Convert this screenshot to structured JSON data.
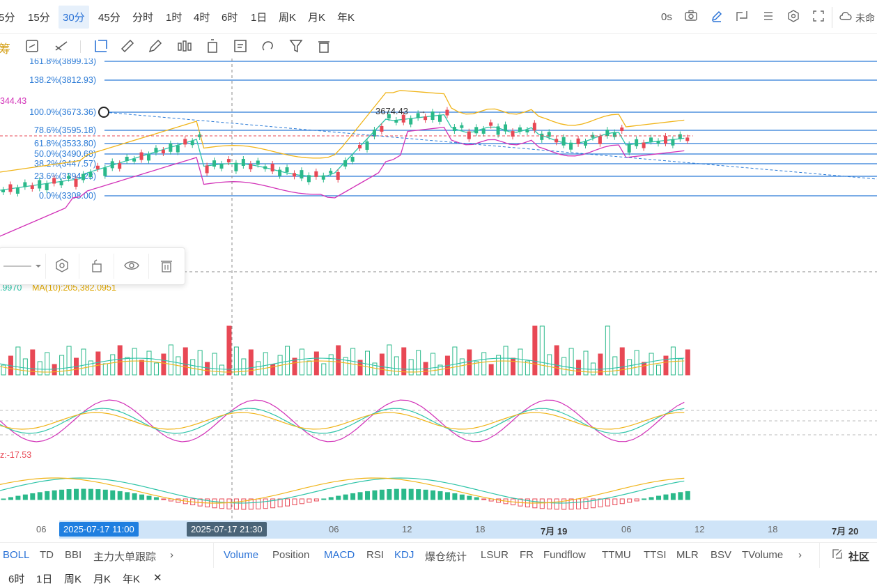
{
  "timeframes": [
    {
      "label": "5分",
      "active": false
    },
    {
      "label": "15分",
      "active": false
    },
    {
      "label": "30分",
      "active": true
    },
    {
      "label": "45分",
      "active": false
    },
    {
      "label": "分时",
      "active": false
    },
    {
      "label": "1时",
      "active": false
    },
    {
      "label": "4时",
      "active": false
    },
    {
      "label": "6时",
      "active": false
    },
    {
      "label": "1日",
      "active": false
    },
    {
      "label": "周K",
      "active": false
    },
    {
      "label": "月K",
      "active": false
    },
    {
      "label": "年K",
      "active": false
    }
  ],
  "top_right": {
    "countdown": "0s",
    "cloud_label": "未命",
    "icons": [
      "camera-icon",
      "pencil-icon",
      "window-icon",
      "list-icon",
      "settings-icon",
      "fullscreen-icon",
      "cloud-icon"
    ]
  },
  "draw_tools": {
    "left_label": "筹",
    "icons": [
      "sync-icon",
      "line-tool-icon",
      "rectangle-tool-icon",
      "ruler-icon",
      "brush-icon",
      "pattern-icon",
      "trash-can-icon",
      "note-icon",
      "magnet-icon",
      "filter-icon",
      "delete-icon"
    ]
  },
  "chart": {
    "price_level_left": "344.43",
    "fib_levels": [
      {
        "label": "161.8%(3899.13)"
      },
      {
        "label": "138.2%(3812.93)"
      },
      {
        "label": "100.0%(3673.36)"
      },
      {
        "label": "78.6%(3595.18)"
      },
      {
        "label": "61.8%(3533.80)"
      },
      {
        "label": "50.0%(3490.68)"
      },
      {
        "label": "38.2%(3447.57)"
      },
      {
        "label": "23.6%(3394.23)"
      },
      {
        "label": "0.0%(3308.00)"
      }
    ],
    "high_marker": "3674.43",
    "colors": {
      "up": "#2bb98a",
      "down": "#e84855",
      "fib": "#2a7ad6",
      "boll_upper": "#f0b418",
      "boll_mid": "#2ec4a8",
      "boll_lower": "#d232b8"
    }
  },
  "float_panel": {
    "icons": [
      "line-style-icon",
      "settings-icon",
      "lock-icon",
      "eye-icon",
      "trash-icon"
    ]
  },
  "volume": {
    "ma5_label": ".9970",
    "ma10_label": "MA(10):205,382.0951"
  },
  "macd": {
    "label": "z:-17.53"
  },
  "time_axis": {
    "ticks": [
      {
        "label": "06",
        "bold": false
      },
      {
        "label": "06",
        "bold": false
      },
      {
        "label": "12",
        "bold": false
      },
      {
        "label": "18",
        "bold": false
      },
      {
        "label": "7月 19",
        "bold": true
      },
      {
        "label": "06",
        "bold": false
      },
      {
        "label": "12",
        "bold": false
      },
      {
        "label": "18",
        "bold": false
      },
      {
        "label": "7月 20",
        "bold": true
      }
    ],
    "chip_start": "2025-07-17 11:00",
    "chip_cursor": "2025-07-17 21:30"
  },
  "indicator_tabs_left": [
    "BOLL",
    "TD",
    "BBI",
    "主力大单跟踪"
  ],
  "indicator_tabs_right": [
    {
      "label": "Volume",
      "on": true
    },
    {
      "label": "Position",
      "on": false
    },
    {
      "label": "MACD",
      "on": true
    },
    {
      "label": "RSI",
      "on": false
    },
    {
      "label": "KDJ",
      "on": true
    },
    {
      "label": "爆仓统计",
      "on": false
    },
    {
      "label": "LSUR",
      "on": false
    },
    {
      "label": "FR",
      "on": false
    },
    {
      "label": "Fundflow",
      "on": false
    },
    {
      "label": "TTMU",
      "on": false
    },
    {
      "label": "TTSI",
      "on": false
    },
    {
      "label": "MLR",
      "on": false
    },
    {
      "label": "BSV",
      "on": false
    },
    {
      "label": "TVolume",
      "on": false
    }
  ],
  "community_label": "社区",
  "bottom_row": [
    "6时",
    "1日",
    "周K",
    "月K",
    "年K"
  ]
}
